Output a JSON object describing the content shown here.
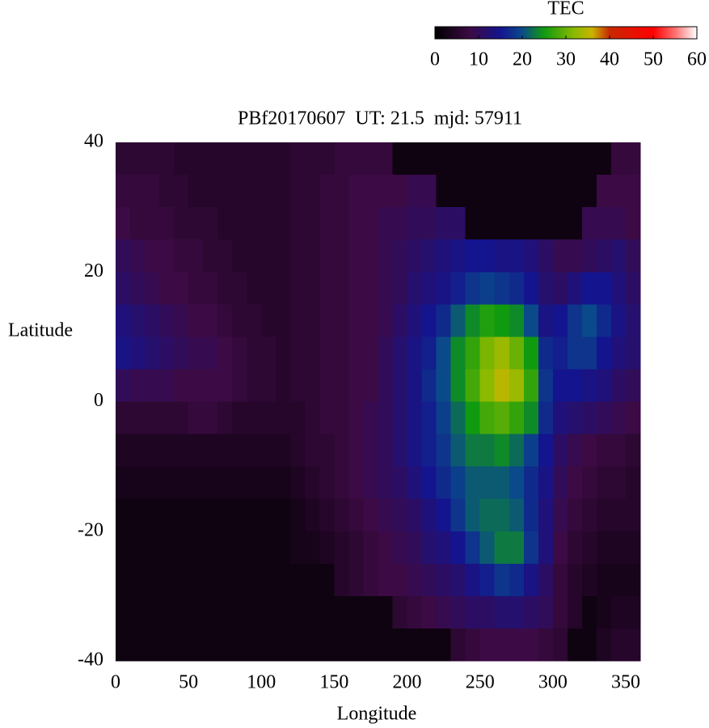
{
  "chart_data": {
    "type": "heatmap",
    "title": "PBf20170607  UT: 21.5  mjd: 57911",
    "xlabel": "Longitude",
    "ylabel": "Latitude",
    "xlim": [
      0,
      360
    ],
    "ylim": [
      -40,
      40
    ],
    "xticks": [
      0,
      50,
      100,
      150,
      200,
      250,
      300,
      350
    ],
    "yticks": [
      -40,
      -20,
      0,
      20,
      40
    ],
    "colorbar": {
      "label": "TEC",
      "lim": [
        0,
        60
      ],
      "ticks": [
        0,
        10,
        20,
        30,
        40,
        50,
        60
      ],
      "colormap": [
        [
          0,
          "#000000"
        ],
        [
          8,
          "#3c0a44"
        ],
        [
          15,
          "#14148e"
        ],
        [
          20,
          "#0a4a8a"
        ],
        [
          25,
          "#109a10"
        ],
        [
          32,
          "#8cba00"
        ],
        [
          36,
          "#c8b400"
        ],
        [
          40,
          "#c82800"
        ],
        [
          50,
          "#ff0000"
        ],
        [
          55,
          "#ff7070"
        ],
        [
          60,
          "#ffffff"
        ]
      ]
    },
    "x": [
      5,
      15,
      25,
      35,
      45,
      55,
      65,
      75,
      85,
      95,
      105,
      115,
      125,
      135,
      145,
      155,
      165,
      175,
      185,
      195,
      205,
      215,
      225,
      235,
      245,
      255,
      265,
      275,
      285,
      295,
      305,
      315,
      325,
      335,
      345,
      355
    ],
    "y": [
      37.5,
      32.5,
      27.5,
      22.5,
      17.5,
      12.5,
      7.5,
      2.5,
      -2.5,
      -7.5,
      -12.5,
      -17.5,
      -22.5,
      -27.5,
      -32.5,
      -37.5
    ],
    "z": [
      [
        6,
        6,
        6,
        6,
        5,
        5,
        5,
        5,
        5,
        5,
        5,
        5,
        6,
        6,
        6,
        7,
        7,
        7,
        7,
        2,
        2,
        2,
        2,
        2,
        2,
        2,
        2,
        2,
        2,
        2,
        2,
        2,
        2,
        2,
        7,
        7
      ],
      [
        7,
        7,
        7,
        6,
        6,
        5,
        5,
        5,
        5,
        5,
        5,
        5,
        6,
        6,
        7,
        7,
        8,
        8,
        8,
        8,
        9,
        9,
        2,
        2,
        2,
        2,
        2,
        2,
        2,
        2,
        2,
        2,
        2,
        8,
        8,
        8
      ],
      [
        8,
        7,
        7,
        7,
        6,
        6,
        6,
        5,
        5,
        5,
        5,
        5,
        6,
        6,
        7,
        7,
        8,
        8,
        9,
        9,
        10,
        10,
        11,
        11,
        2,
        2,
        2,
        2,
        2,
        2,
        2,
        2,
        9,
        9,
        9,
        8
      ],
      [
        10,
        9,
        8,
        8,
        7,
        7,
        6,
        6,
        5,
        5,
        5,
        5,
        6,
        6,
        7,
        7,
        8,
        8,
        9,
        10,
        11,
        12,
        13,
        14,
        15,
        15,
        14,
        14,
        13,
        11,
        9,
        9,
        10,
        11,
        12,
        10
      ],
      [
        11,
        10,
        9,
        8,
        8,
        7,
        7,
        6,
        6,
        5,
        5,
        5,
        6,
        6,
        7,
        7,
        8,
        8,
        9,
        10,
        12,
        13,
        14,
        16,
        18,
        19,
        18,
        17,
        15,
        12,
        11,
        13,
        15,
        15,
        13,
        11
      ],
      [
        13,
        12,
        11,
        10,
        9,
        8,
        8,
        7,
        6,
        6,
        5,
        5,
        6,
        6,
        7,
        7,
        8,
        8,
        9,
        11,
        13,
        15,
        17,
        21,
        24,
        26,
        25,
        24,
        20,
        14,
        15,
        18,
        20,
        17,
        14,
        12
      ],
      [
        14,
        13,
        12,
        11,
        10,
        9,
        9,
        8,
        7,
        6,
        6,
        5,
        6,
        6,
        7,
        7,
        8,
        8,
        10,
        12,
        14,
        16,
        20,
        24,
        27,
        31,
        33,
        30,
        25,
        17,
        16,
        18,
        18,
        15,
        13,
        12
      ],
      [
        10,
        9,
        9,
        9,
        8,
        8,
        8,
        8,
        7,
        6,
        6,
        5,
        6,
        6,
        7,
        7,
        8,
        8,
        10,
        12,
        14,
        17,
        20,
        24,
        28,
        32,
        35,
        33,
        27,
        18,
        15,
        15,
        14,
        13,
        11,
        10
      ],
      [
        6,
        6,
        6,
        6,
        6,
        7,
        7,
        6,
        5,
        5,
        5,
        5,
        5,
        6,
        7,
        7,
        8,
        9,
        10,
        12,
        14,
        16,
        19,
        22,
        25,
        28,
        29,
        27,
        24,
        17,
        13,
        12,
        11,
        10,
        9,
        8
      ],
      [
        4,
        4,
        4,
        4,
        4,
        4,
        4,
        4,
        4,
        4,
        4,
        4,
        5,
        6,
        6,
        7,
        8,
        9,
        10,
        12,
        14,
        16,
        18,
        21,
        23,
        23,
        24,
        22,
        19,
        15,
        11,
        9,
        8,
        7,
        7,
        6
      ],
      [
        3,
        3,
        3,
        3,
        3,
        3,
        3,
        3,
        3,
        3,
        3,
        3,
        4,
        5,
        6,
        7,
        8,
        9,
        10,
        11,
        13,
        15,
        17,
        19,
        21,
        21,
        21,
        20,
        17,
        14,
        10,
        8,
        7,
        6,
        6,
        5
      ],
      [
        2,
        2,
        2,
        2,
        2,
        2,
        2,
        2,
        2,
        2,
        2,
        2,
        3,
        4,
        5,
        6,
        7,
        8,
        9,
        10,
        11,
        13,
        15,
        18,
        21,
        22,
        22,
        21,
        17,
        13,
        9,
        7,
        6,
        5,
        5,
        5
      ],
      [
        2,
        2,
        2,
        2,
        2,
        2,
        2,
        2,
        2,
        2,
        2,
        2,
        3,
        3,
        4,
        5,
        6,
        7,
        8,
        9,
        10,
        12,
        13,
        15,
        18,
        21,
        23,
        23,
        18,
        13,
        8,
        6,
        5,
        4,
        4,
        4
      ],
      [
        2,
        2,
        2,
        2,
        2,
        2,
        2,
        2,
        2,
        2,
        2,
        2,
        2,
        2,
        2,
        5,
        6,
        7,
        8,
        8,
        9,
        10,
        11,
        12,
        14,
        16,
        18,
        17,
        14,
        11,
        7,
        5,
        4,
        3,
        3,
        3
      ],
      [
        2,
        2,
        2,
        2,
        2,
        2,
        2,
        2,
        2,
        2,
        2,
        2,
        2,
        2,
        2,
        2,
        2,
        2,
        2,
        6,
        7,
        8,
        9,
        10,
        11,
        11,
        12,
        12,
        11,
        10,
        7,
        5,
        2,
        3,
        4,
        4
      ],
      [
        2,
        2,
        2,
        2,
        2,
        2,
        2,
        2,
        2,
        2,
        2,
        2,
        2,
        2,
        2,
        2,
        2,
        2,
        2,
        2,
        2,
        2,
        2,
        6,
        7,
        8,
        8,
        8,
        8,
        7,
        6,
        2,
        2,
        4,
        5,
        5
      ]
    ]
  }
}
